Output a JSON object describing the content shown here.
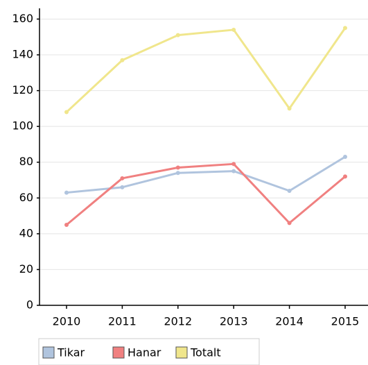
{
  "chart_data": {
    "type": "line",
    "categories": [
      "2010",
      "2011",
      "2012",
      "2013",
      "2014",
      "2015"
    ],
    "series": [
      {
        "name": "Tikar",
        "color": "#b0c4de",
        "values": [
          63,
          66,
          74,
          75,
          64,
          83
        ]
      },
      {
        "name": "Hanar",
        "color": "#f08080",
        "values": [
          45,
          71,
          77,
          79,
          46,
          72
        ]
      },
      {
        "name": "Totalt",
        "color": "#f0e68c",
        "values": [
          108,
          137,
          151,
          154,
          110,
          155
        ]
      }
    ],
    "ylim": [
      0,
      166
    ],
    "yticks": [
      0,
      20,
      40,
      60,
      80,
      100,
      120,
      140,
      160
    ],
    "grid": true
  }
}
